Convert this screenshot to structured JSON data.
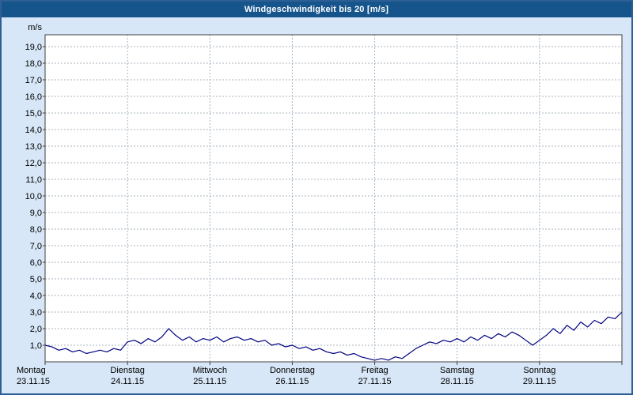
{
  "window": {
    "title": "Windgeschwindigkeit bis 20 [m/s]"
  },
  "colors": {
    "title_bar": "#16548c",
    "window_border": "#2e5f94",
    "background": "#d7e7f7",
    "plot_background": "#ffffff",
    "plot_frame": "#404040",
    "gridline": "#a9b4bf",
    "series_line": "#000080"
  },
  "chart_data": {
    "type": "line",
    "title": "Windgeschwindigkeit bis 20 [m/s]",
    "xlabel": "",
    "ylabel": "m/s",
    "ylim": [
      0,
      19.8
    ],
    "ytick_step": 1,
    "grid": true,
    "legend": false,
    "ytick_labels": [
      "1,0",
      "2,0",
      "3,0",
      "4,0",
      "5,0",
      "6,0",
      "7,0",
      "8,0",
      "9,0",
      "10,0",
      "11,0",
      "12,0",
      "13,0",
      "14,0",
      "15,0",
      "16,0",
      "17,0",
      "18,0",
      "19,0"
    ],
    "x_days": [
      {
        "day": "Montag",
        "date": "23.11.15"
      },
      {
        "day": "Dienstag",
        "date": "24.11.15"
      },
      {
        "day": "Mittwoch",
        "date": "25.11.15"
      },
      {
        "day": "Donnerstag",
        "date": "26.11.15"
      },
      {
        "day": "Freitag",
        "date": "27.11.15"
      },
      {
        "day": "Samstag",
        "date": "28.11.15"
      },
      {
        "day": "Sonntag",
        "date": "29.11.15"
      }
    ],
    "series": [
      {
        "name": "Windgeschwindigkeit",
        "unit": "m/s",
        "color": "#000080",
        "sample_interval_hours": 2,
        "values": [
          1.0,
          0.9,
          0.7,
          0.8,
          0.6,
          0.7,
          0.5,
          0.6,
          0.7,
          0.6,
          0.8,
          0.7,
          1.2,
          1.3,
          1.1,
          1.4,
          1.2,
          1.5,
          2.0,
          1.6,
          1.3,
          1.5,
          1.2,
          1.4,
          1.3,
          1.5,
          1.2,
          1.4,
          1.5,
          1.3,
          1.4,
          1.2,
          1.3,
          1.0,
          1.1,
          0.9,
          1.0,
          0.8,
          0.9,
          0.7,
          0.8,
          0.6,
          0.5,
          0.6,
          0.4,
          0.5,
          0.3,
          0.2,
          0.1,
          0.2,
          0.1,
          0.3,
          0.2,
          0.5,
          0.8,
          1.0,
          1.2,
          1.1,
          1.3,
          1.2,
          1.4,
          1.2,
          1.5,
          1.3,
          1.6,
          1.4,
          1.7,
          1.5,
          1.8,
          1.6,
          1.3,
          1.0,
          1.3,
          1.6,
          2.0,
          1.7,
          2.2,
          1.9,
          2.4,
          2.1,
          2.5,
          2.3,
          2.7,
          2.6,
          3.0
        ]
      }
    ]
  }
}
